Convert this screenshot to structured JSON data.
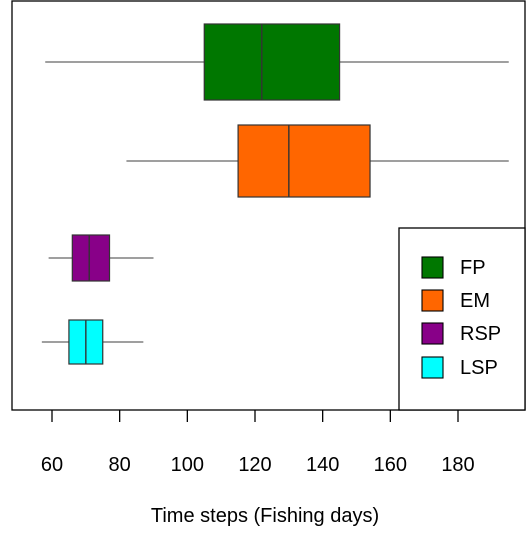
{
  "chart_data": {
    "type": "boxplot",
    "orientation": "horizontal",
    "xlabel": "Time steps (Fishing days)",
    "xlim": [
      50,
      196
    ],
    "xticks": [
      60,
      80,
      100,
      120,
      140,
      160,
      180
    ],
    "series": [
      {
        "name": "FP",
        "color": "#007700",
        "min": 58,
        "q1": 105,
        "median": 122,
        "q3": 145,
        "max": 195
      },
      {
        "name": "EM",
        "color": "#ff6600",
        "min": 82,
        "q1": 115,
        "median": 130,
        "q3": 154,
        "max": 195
      },
      {
        "name": "RSP",
        "color": "#880088",
        "min": 59,
        "q1": 66,
        "median": 71,
        "q3": 77,
        "max": 90
      },
      {
        "name": "LSP",
        "color": "#00ffff",
        "min": 57,
        "q1": 65,
        "median": 70,
        "q3": 75,
        "max": 87
      }
    ],
    "legend": {
      "position": "bottom-right",
      "entries": [
        "FP",
        "EM",
        "RSP",
        "LSP"
      ]
    },
    "grid": false
  }
}
